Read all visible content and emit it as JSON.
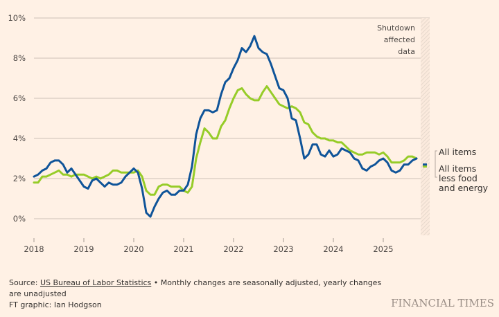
{
  "chart_data": {
    "type": "line",
    "title": "",
    "xlabel": "",
    "ylabel": "",
    "ylim": [
      -1,
      10
    ],
    "yticks": [
      0,
      2,
      4,
      6,
      8,
      10
    ],
    "ytick_labels": [
      "0%",
      "2%",
      "4%",
      "6%",
      "8%",
      "10%"
    ],
    "xticks": [
      2018,
      2019,
      2020,
      2021,
      2022,
      2023,
      2024,
      2025
    ],
    "xtick_labels": [
      "2018",
      "2019",
      "2020",
      "2021",
      "2022",
      "2023",
      "2024",
      "2025"
    ],
    "x_start": "2018-01",
    "x_frequency": "monthly",
    "grid": true,
    "legend_position": "right",
    "annotation": {
      "label_lines": [
        "Shutdown",
        "affected",
        "data"
      ],
      "period": "2025-10"
    },
    "series": [
      {
        "name": "All items",
        "color": "#0f5499",
        "values": [
          2.1,
          2.2,
          2.4,
          2.5,
          2.8,
          2.9,
          2.9,
          2.7,
          2.3,
          2.5,
          2.2,
          1.9,
          1.6,
          1.5,
          1.9,
          2.0,
          1.8,
          1.6,
          1.8,
          1.7,
          1.7,
          1.8,
          2.1,
          2.3,
          2.5,
          2.3,
          1.5,
          0.3,
          0.1,
          0.6,
          1.0,
          1.3,
          1.4,
          1.2,
          1.2,
          1.4,
          1.4,
          1.7,
          2.6,
          4.2,
          5.0,
          5.4,
          5.4,
          5.3,
          5.4,
          6.2,
          6.8,
          7.0,
          7.5,
          7.9,
          8.5,
          8.3,
          8.6,
          9.1,
          8.5,
          8.3,
          8.2,
          7.7,
          7.1,
          6.5,
          6.4,
          6.0,
          5.0,
          4.9,
          4.0,
          3.0,
          3.2,
          3.7,
          3.7,
          3.2,
          3.1,
          3.4,
          3.1,
          3.2,
          3.5,
          3.4,
          3.3,
          3.0,
          2.9,
          2.5,
          2.4,
          2.6,
          2.7,
          2.9,
          3.0,
          2.8,
          2.4,
          2.3,
          2.4,
          2.7,
          2.7,
          2.9,
          3.0
        ],
        "last_marker": {
          "period": "2025-11",
          "value": 2.7
        }
      },
      {
        "name": "All items less food and energy",
        "color": "#96cc28",
        "values": [
          1.8,
          1.8,
          2.1,
          2.1,
          2.2,
          2.3,
          2.4,
          2.2,
          2.2,
          2.1,
          2.2,
          2.2,
          2.2,
          2.1,
          2.0,
          2.1,
          2.0,
          2.1,
          2.2,
          2.4,
          2.4,
          2.3,
          2.3,
          2.3,
          2.3,
          2.4,
          2.1,
          1.4,
          1.2,
          1.2,
          1.6,
          1.7,
          1.7,
          1.6,
          1.6,
          1.6,
          1.4,
          1.3,
          1.6,
          3.0,
          3.8,
          4.5,
          4.3,
          4.0,
          4.0,
          4.6,
          4.9,
          5.5,
          6.0,
          6.4,
          6.5,
          6.2,
          6.0,
          5.9,
          5.9,
          6.3,
          6.6,
          6.3,
          6.0,
          5.7,
          5.6,
          5.5,
          5.6,
          5.5,
          5.3,
          4.8,
          4.7,
          4.3,
          4.1,
          4.0,
          4.0,
          3.9,
          3.9,
          3.8,
          3.8,
          3.6,
          3.4,
          3.3,
          3.2,
          3.2,
          3.3,
          3.3,
          3.3,
          3.2,
          3.3,
          3.1,
          2.8,
          2.8,
          2.8,
          2.9,
          3.1,
          3.1,
          3.0
        ],
        "last_marker": {
          "period": "2025-11",
          "value": 2.6
        }
      }
    ]
  },
  "footer": {
    "source_prefix": "Source: ",
    "source_link": "US Bureau of Labor Statistics",
    "note": " • Monthly changes are seasonally adjusted, yearly changes are unadjusted",
    "credit": "FT graphic: Ian Hodgson",
    "brand": "FINANCIAL TIMES"
  },
  "legend": {
    "items": [
      {
        "lines": [
          "All items"
        ]
      },
      {
        "lines": [
          "All items",
          "less food",
          "and energy"
        ]
      }
    ]
  },
  "style": {
    "background": "#fff1e5",
    "gridline": "#ccc1b7",
    "hatch": "#e8ddd3"
  }
}
